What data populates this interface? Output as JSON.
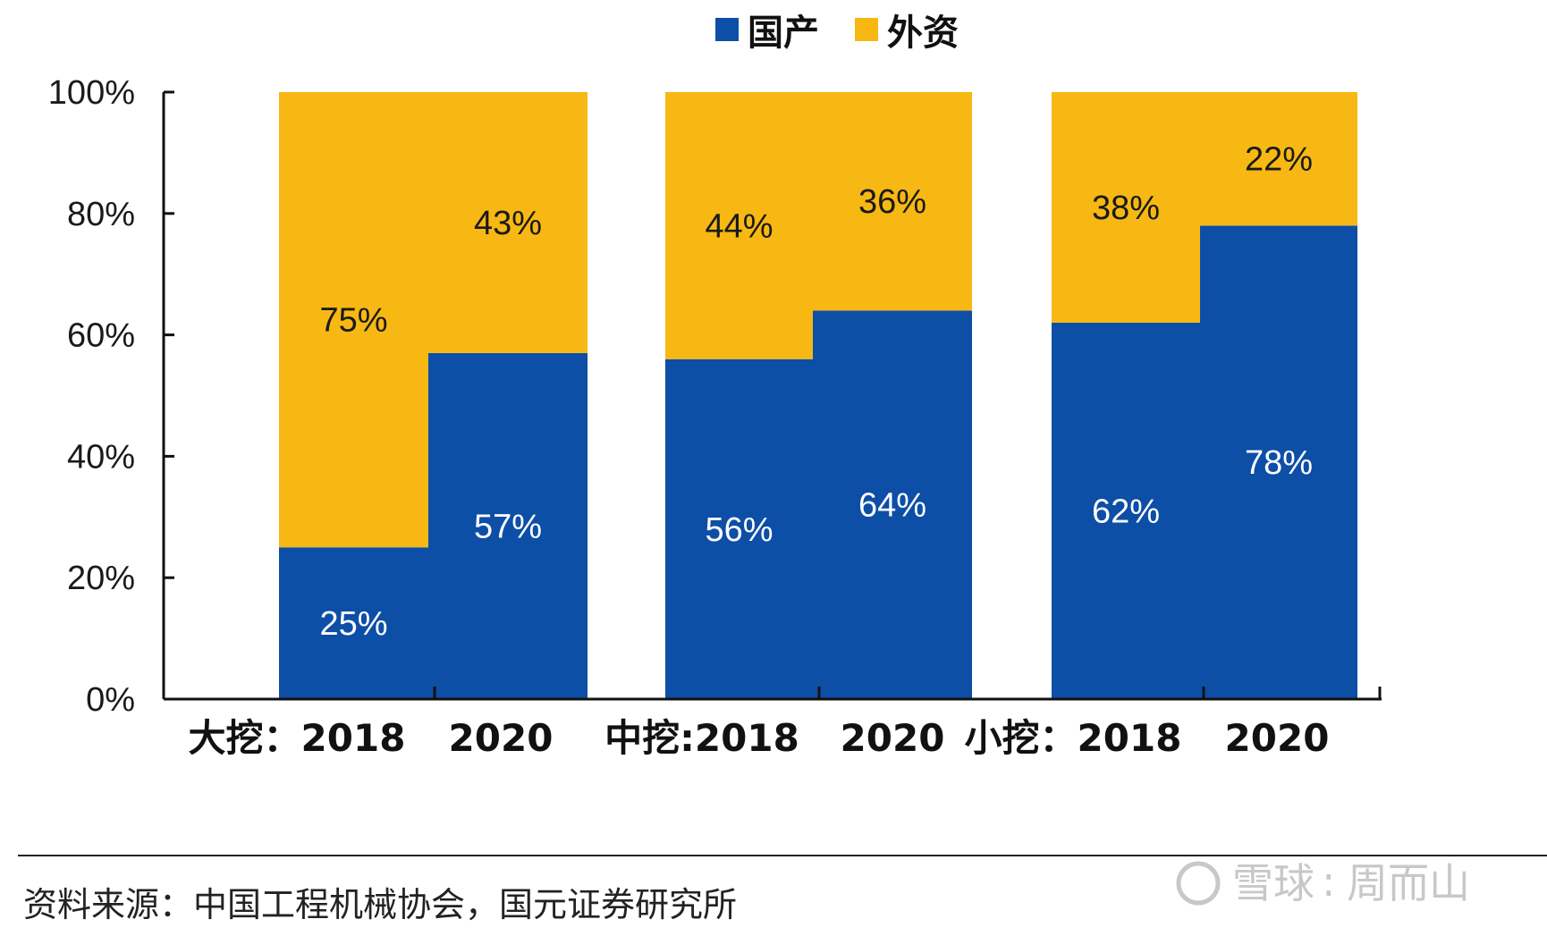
{
  "chart_data": {
    "type": "bar",
    "stacked": true,
    "categories": [
      "大挖：2018",
      "2020",
      "中挖:2018",
      "2020",
      "小挖：2018",
      "2020"
    ],
    "series": [
      {
        "name": "国产",
        "values": [
          25,
          57,
          56,
          64,
          62,
          78
        ],
        "color": "#0d4ea6"
      },
      {
        "name": "外资",
        "values": [
          75,
          43,
          44,
          36,
          38,
          22
        ],
        "color": "#f7b813"
      }
    ],
    "ylim": [
      0,
      100
    ],
    "yticks": [
      "0%",
      "20%",
      "40%",
      "60%",
      "80%",
      "100%"
    ],
    "legend_position": "top-center"
  },
  "source": "资料来源：中国工程机械协会，国元证券研究所",
  "watermark": {
    "brand": "雪球",
    "author": "周而山"
  }
}
